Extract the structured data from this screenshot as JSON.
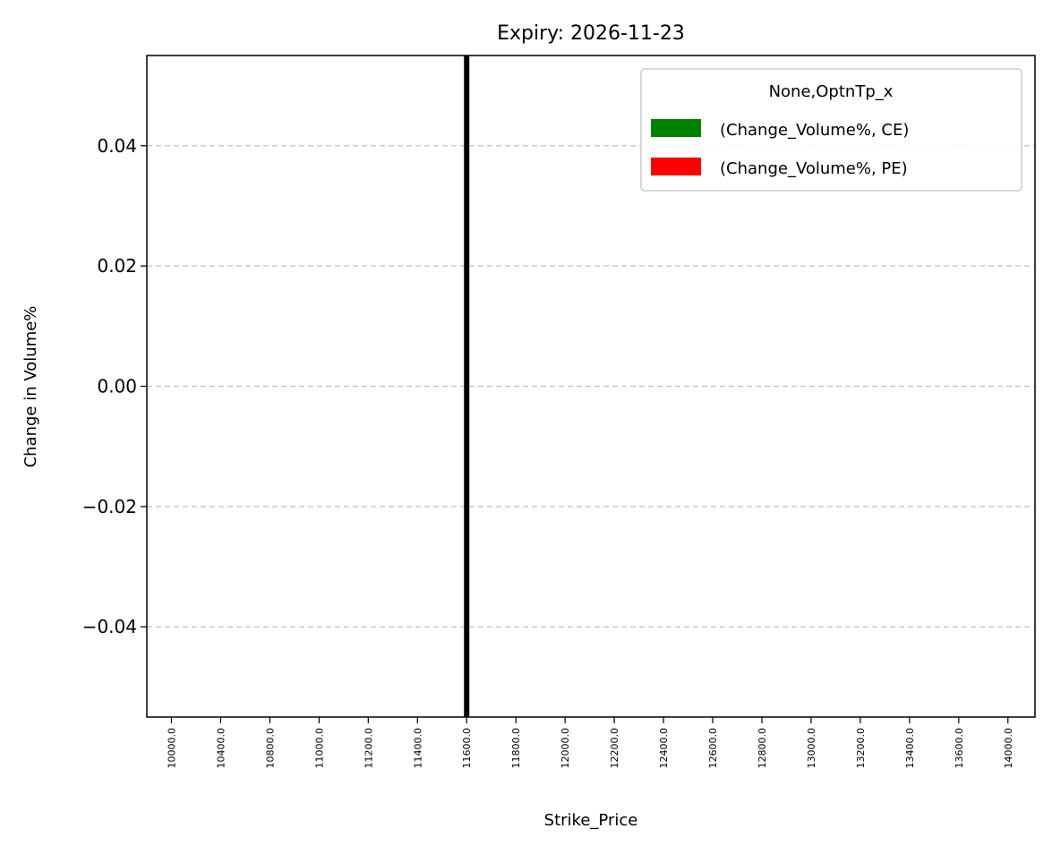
{
  "chart_data": {
    "type": "bar",
    "title": "Expiry: 2026-11-23",
    "xlabel": "Strike_Price",
    "ylabel": "Change in Volume%",
    "categories": [
      "10000.0",
      "10400.0",
      "10800.0",
      "11000.0",
      "11200.0",
      "11400.0",
      "11600.0",
      "11800.0",
      "12000.0",
      "12200.0",
      "12400.0",
      "12600.0",
      "12800.0",
      "13000.0",
      "13200.0",
      "13400.0",
      "13600.0",
      "14000.0"
    ],
    "series": [
      {
        "name": "(Change_Volume%, CE)",
        "color": "#008000",
        "values": [
          0,
          0,
          0,
          0,
          0,
          0,
          0,
          0,
          0,
          0,
          0,
          0,
          0,
          0,
          0,
          0,
          0,
          0
        ]
      },
      {
        "name": "(Change_Volume%, PE)",
        "color": "#ff0000",
        "values": [
          0,
          0,
          0,
          0,
          0,
          0,
          0,
          0,
          0,
          0,
          0,
          0,
          0,
          0,
          0,
          0,
          0,
          0
        ]
      }
    ],
    "ylim": [
      -0.055,
      0.055
    ],
    "yticks": [
      -0.04,
      -0.02,
      0.0,
      0.02,
      0.04
    ],
    "ytick_labels": [
      "−0.04",
      "−0.02",
      "0.00",
      "0.02",
      "0.04"
    ],
    "grid": {
      "axis": "y",
      "style": "dashed"
    },
    "legend": {
      "title": "None,OptnTp_x",
      "placement": "upper right"
    },
    "reference_line": {
      "x_category": "11600.0",
      "color": "#000000"
    }
  }
}
